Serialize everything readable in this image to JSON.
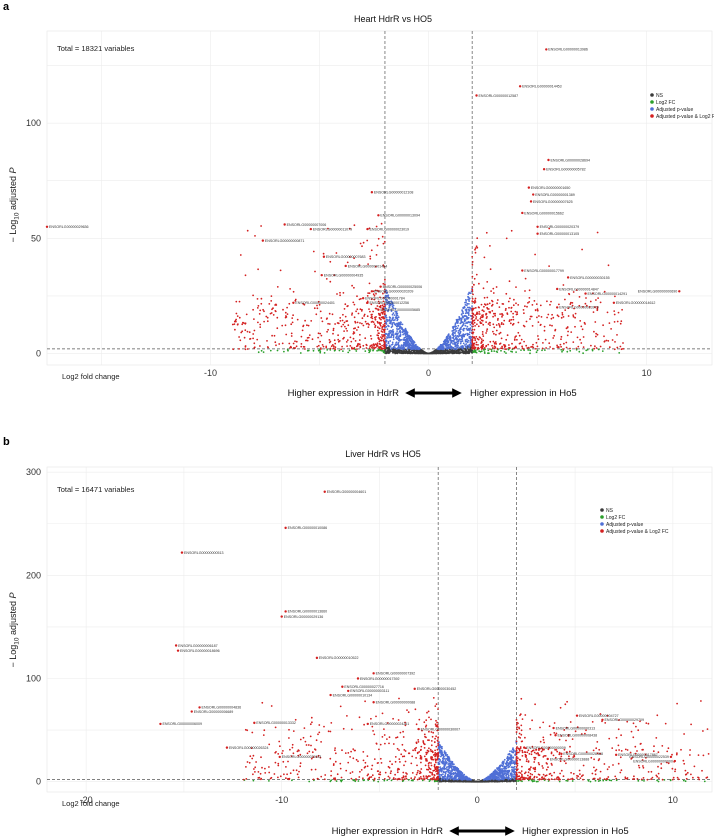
{
  "chart_data": [
    {
      "panel": "a",
      "type": "scatter",
      "title": "Heart HdrR vs HO5",
      "total_label": "Total = 18321 variables",
      "xlabel": "Log2 fold change",
      "ylabel": "− Log10 adjusted P",
      "ylabel_parts": {
        "a": "− Log",
        "sub": "10",
        "b": " adjusted ",
        "p": "P"
      },
      "xlim": [
        -17.5,
        13
      ],
      "ylim": [
        -5,
        140
      ],
      "xticks": [
        -10,
        0,
        10
      ],
      "yticks": [
        0,
        50,
        100
      ],
      "fc_cutoff": 2,
      "p_cutoff": 2,
      "legend": [
        "NS",
        "Log2 FC",
        "Adjusted p-value",
        "Adjusted p-value & Log2 FC"
      ],
      "colors": {
        "NS": "#3a3a3a",
        "Log2 FC": "#2ca02c",
        "Adjusted p-value": "#4f6fd6",
        "Adjusted p-value & Log2 FC": "#d42020"
      },
      "arrow": {
        "left": "Higher expression in HdrR",
        "right": "Higher expression in Ho5"
      },
      "labeled_points": [
        {
          "id": "ENSORLG00000013986",
          "x": 5.4,
          "y": 132
        },
        {
          "id": "ENSORLG00000014453",
          "x": 4.2,
          "y": 116
        },
        {
          "id": "ENSORLG00000012587",
          "x": 2.2,
          "y": 112
        },
        {
          "id": "ENSORLG00000028694",
          "x": 5.5,
          "y": 84
        },
        {
          "id": "ENSORLG00000005782",
          "x": 5.3,
          "y": 80
        },
        {
          "id": "ENSORLG00000001650",
          "x": 4.6,
          "y": 72
        },
        {
          "id": "ENSORLG00000001389",
          "x": 4.8,
          "y": 69
        },
        {
          "id": "ENSORLG00000007625",
          "x": 4.7,
          "y": 66
        },
        {
          "id": "ENSORLG00000015662",
          "x": 4.3,
          "y": 61
        },
        {
          "id": "ENSORLG00000020379",
          "x": 5.0,
          "y": 55
        },
        {
          "id": "ENSORLG00000013105",
          "x": 5.0,
          "y": 52
        },
        {
          "id": "ENSORLG00000012108",
          "x": -2.6,
          "y": 70
        },
        {
          "id": "ENSORLG00000013094",
          "x": -2.3,
          "y": 60
        },
        {
          "id": "ENSORLG00000007006",
          "x": -6.6,
          "y": 56
        },
        {
          "id": "ENSORLG00000011079",
          "x": -5.4,
          "y": 54
        },
        {
          "id": "ENSORLG00000023019",
          "x": -2.8,
          "y": 54
        },
        {
          "id": "ENSORLG00000000871",
          "x": -7.6,
          "y": 49
        },
        {
          "id": "ENSORLG00000029636",
          "x": -17.5,
          "y": 55
        },
        {
          "id": "ENSORLG00000007683",
          "x": -4.8,
          "y": 42
        },
        {
          "id": "ENSORLG00000001494",
          "x": -3.8,
          "y": 38
        },
        {
          "id": "ENSORLG00000004935",
          "x": -4.9,
          "y": 34
        },
        {
          "id": "ENSORLG00000025006",
          "x": -2.2,
          "y": 29
        },
        {
          "id": "ENSORLG00000020209",
          "x": -2.6,
          "y": 27
        },
        {
          "id": "ENSORLG00000001784",
          "x": -3.0,
          "y": 24
        },
        {
          "id": "ENSORLG00000012256",
          "x": -2.8,
          "y": 22
        },
        {
          "id": "ENSORLG00000005685",
          "x": -2.3,
          "y": 19
        },
        {
          "id": "ENSORLG00000024401",
          "x": -6.2,
          "y": 22
        },
        {
          "id": "ENSORLG00000017799",
          "x": 4.3,
          "y": 36
        },
        {
          "id": "ENSORLG00000030155",
          "x": 6.4,
          "y": 33
        },
        {
          "id": "ENSORLG00000014847",
          "x": 5.9,
          "y": 28
        },
        {
          "id": "ENSORLG00000014291",
          "x": 7.2,
          "y": 26
        },
        {
          "id": "ENSORLG00000023979",
          "x": 5.9,
          "y": 20
        },
        {
          "id": "ENSORLG00000014612",
          "x": 8.5,
          "y": 22
        },
        {
          "id": "ENSORLG00000000690",
          "x": 11.5,
          "y": 27
        }
      ]
    },
    {
      "panel": "b",
      "type": "scatter",
      "title": "Liver HdrR vs HO5",
      "total_label": "Total = 16471 variables",
      "xlabel": "Log2 fold change",
      "ylabel": "− Log10 adjusted P",
      "ylabel_parts": {
        "a": "− Log",
        "sub": "10",
        "b": " adjusted ",
        "p": "P"
      },
      "xlim": [
        -22,
        12
      ],
      "ylim": [
        -10,
        305
      ],
      "xticks": [
        -20,
        -10,
        0,
        10
      ],
      "yticks": [
        0,
        100,
        200,
        300
      ],
      "fc_cutoff": 2,
      "p_cutoff": 2,
      "legend": [
        "NS",
        "Log2 FC",
        "Adjusted p-value",
        "Adjusted p-value & Log2 FC"
      ],
      "colors": {
        "NS": "#3a3a3a",
        "Log2 FC": "#2ca02c",
        "Adjusted p-value": "#4f6fd6",
        "Adjusted p-value & Log2 FC": "#d42020"
      },
      "arrow": {
        "left": "Higher expression in HdrR",
        "right": "Higher expression in Ho5"
      },
      "labeled_points": [
        {
          "id": "ENSORLG00000004601",
          "x": -7.8,
          "y": 281
        },
        {
          "id": "ENSORLG00000010086",
          "x": -9.8,
          "y": 246
        },
        {
          "id": "ENSORLG00000000513",
          "x": -15.1,
          "y": 222
        },
        {
          "id": "ENSORLG00000013660",
          "x": -9.8,
          "y": 165
        },
        {
          "id": "ENSORLG00000029136",
          "x": -10.0,
          "y": 160
        },
        {
          "id": "ENSORLG00000006187",
          "x": -15.4,
          "y": 132
        },
        {
          "id": "ENSORLG00000018696",
          "x": -15.3,
          "y": 127
        },
        {
          "id": "ENSORLG00000010522",
          "x": -8.2,
          "y": 120
        },
        {
          "id": "ENSORLG00000007392",
          "x": -5.3,
          "y": 105
        },
        {
          "id": "ENSORLG00000017392",
          "x": -6.1,
          "y": 100
        },
        {
          "id": "ENSORLG00000027716",
          "x": -6.9,
          "y": 92
        },
        {
          "id": "ENSORLG00000030452",
          "x": -3.2,
          "y": 90
        },
        {
          "id": "ENSORLG00000003111",
          "x": -6.6,
          "y": 88
        },
        {
          "id": "ENSORLG00000010134",
          "x": -7.5,
          "y": 84
        },
        {
          "id": "ENSORLG00000000088",
          "x": -5.3,
          "y": 77
        },
        {
          "id": "ENSORLG00000004836",
          "x": -14.2,
          "y": 72
        },
        {
          "id": "ENSORLG00000006689",
          "x": -14.6,
          "y": 68
        },
        {
          "id": "ENSORLG00000006009",
          "x": -16.2,
          "y": 56
        },
        {
          "id": "ENSORLG00000013332",
          "x": -11.4,
          "y": 57
        },
        {
          "id": "ENSORLG00000024261",
          "x": -5.6,
          "y": 56
        },
        {
          "id": "ENSORLG00000030007",
          "x": -3.0,
          "y": 51
        },
        {
          "id": "ENSORLG00000026324",
          "x": -12.8,
          "y": 33
        },
        {
          "id": "ENSORLG00000025933",
          "x": -10.1,
          "y": 24
        },
        {
          "id": "ENSORLG00000004727",
          "x": 5.1,
          "y": 64
        },
        {
          "id": "ENSORLG00000029709",
          "x": 6.4,
          "y": 60
        },
        {
          "id": "ENSORLG00000000313",
          "x": 3.9,
          "y": 52
        },
        {
          "id": "ENSORLG00000008438",
          "x": 4.0,
          "y": 45
        },
        {
          "id": "ENSORLG00000000009",
          "x": 2.4,
          "y": 33
        },
        {
          "id": "ENSORLG00000028468",
          "x": 4.3,
          "y": 27
        },
        {
          "id": "ENSORLG00000013888",
          "x": 3.6,
          "y": 22
        },
        {
          "id": "ENSORLG00000017867",
          "x": 7.1,
          "y": 26
        },
        {
          "id": "ENSORLG00000022539",
          "x": 9.9,
          "y": 24
        },
        {
          "id": "ENSORLG00000000000",
          "x": 10.1,
          "y": 20
        }
      ]
    }
  ]
}
